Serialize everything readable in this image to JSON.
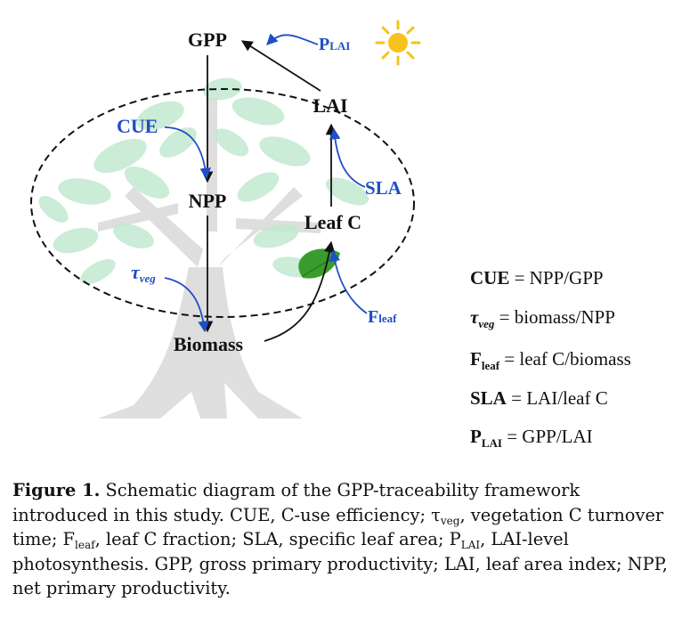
{
  "diagram": {
    "nodes": {
      "gpp": "GPP",
      "lai": "LAI",
      "npp": "NPP",
      "leaf_c": "Leaf C",
      "biomass": "Biomass"
    },
    "factors": {
      "p_lai_main": "P",
      "p_lai_sub": "LAI",
      "cue": "CUE",
      "tau_main": "τ",
      "tau_sub": "veg",
      "sla": "SLA",
      "f_leaf_main": "F",
      "f_leaf_sub": "leaf"
    },
    "colors": {
      "factor_blue": "#1f4fc4",
      "tree": "#bfe8cc",
      "trunk": "#d9d9d9",
      "sun": "#f6c21b",
      "leaf": "#3a9c2e"
    },
    "icons": [
      "sun-icon",
      "leaf-icon",
      "tree-illustration"
    ]
  },
  "definitions": [
    {
      "symbol": "CUE",
      "sub": "",
      "expr": "= NPP/GPP"
    },
    {
      "symbol": "τ",
      "sub": "veg",
      "expr": "= biomass/NPP"
    },
    {
      "symbol": "F",
      "sub": "leaf",
      "expr": "= leaf C/biomass"
    },
    {
      "symbol": "SLA",
      "sub": "",
      "expr": "= LAI/leaf C"
    },
    {
      "symbol": "P",
      "sub": "LAI",
      "expr": "= GPP/LAI"
    }
  ],
  "caption": {
    "label": "Figure 1.",
    "s1": " Schematic diagram of the GPP-traceability framework introduced in this study. CUE, C-use efficiency; τ",
    "s1_sub": "veg",
    "s2": ", vegetation C turnover time; F",
    "s2_sub": "leaf",
    "s3": ", leaf C fraction; SLA, specific leaf area; P",
    "s3_sub": "LAI",
    "s4": ", LAI-level photosynthesis. GPP, gross primary productivity; LAI, leaf area index; NPP, net primary productivity."
  }
}
